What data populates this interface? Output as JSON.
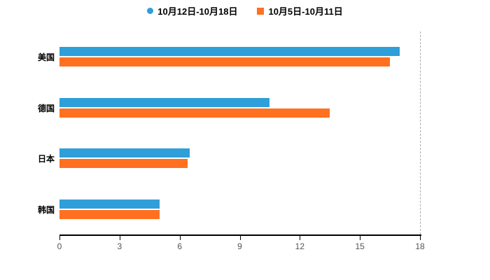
{
  "chart_data": {
    "type": "bar",
    "orientation": "horizontal",
    "title": "",
    "xlabel": "",
    "ylabel": "",
    "categories": [
      "美国",
      "德国",
      "日本",
      "韩国"
    ],
    "series": [
      {
        "name": "10月12日-10月18日",
        "color": "#2E9FD9",
        "marker": "circle",
        "values": [
          17,
          10.5,
          6.5,
          5
        ]
      },
      {
        "name": "10月5日-10月11日",
        "color": "#FF7020",
        "marker": "square",
        "values": [
          16.5,
          13.5,
          6.4,
          5
        ]
      }
    ],
    "xlim": [
      0,
      18
    ],
    "xticks": [
      0,
      3,
      6,
      9,
      12,
      15,
      18
    ],
    "grid": "dashed vertical line at x-max only",
    "legend_position": "top-center",
    "background_color": "#ffffff",
    "axis_color": "#000000",
    "tick_label_color": "#555555"
  }
}
